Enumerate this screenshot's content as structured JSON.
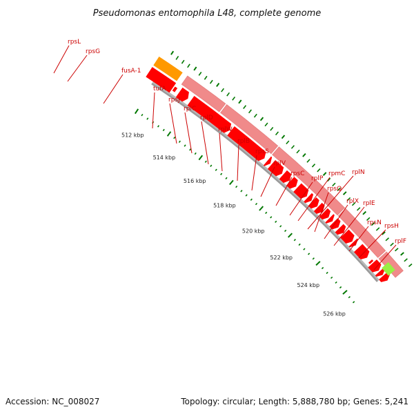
{
  "title": "Pseudomonas entomophila L48, complete genome",
  "footer": {
    "accession": "Accession: NC_008027",
    "summary": "Topology: circular; Length: 5,888,780 bp; Genes: 5,241"
  },
  "colors": {
    "cds_forward_lane": "#f08a8a",
    "cds_reverse_lane": "#ff0000",
    "leader_lane": "#ff9900",
    "green_tick": "#007700",
    "backbone": "#9a9a9a",
    "label": "#cc0000",
    "lime_feature": "#99ee44"
  },
  "kbp_labels": [
    "512 kbp",
    "514 kbp",
    "516 kbp",
    "518 kbp",
    "520 kbp",
    "522 kbp",
    "524 kbp",
    "526 kbp"
  ],
  "genes": [
    "rpsL",
    "rpsG",
    "fusA-1",
    "tufA",
    "rpsJ",
    "rplC",
    "rplD",
    "rplW",
    "rplB",
    "rpsS",
    "rplV",
    "rpsC",
    "rplP",
    "rpmC",
    "rplN",
    "rpsQ",
    "rplX",
    "rplE",
    "rpsN",
    "rpsH",
    "rplF"
  ]
}
